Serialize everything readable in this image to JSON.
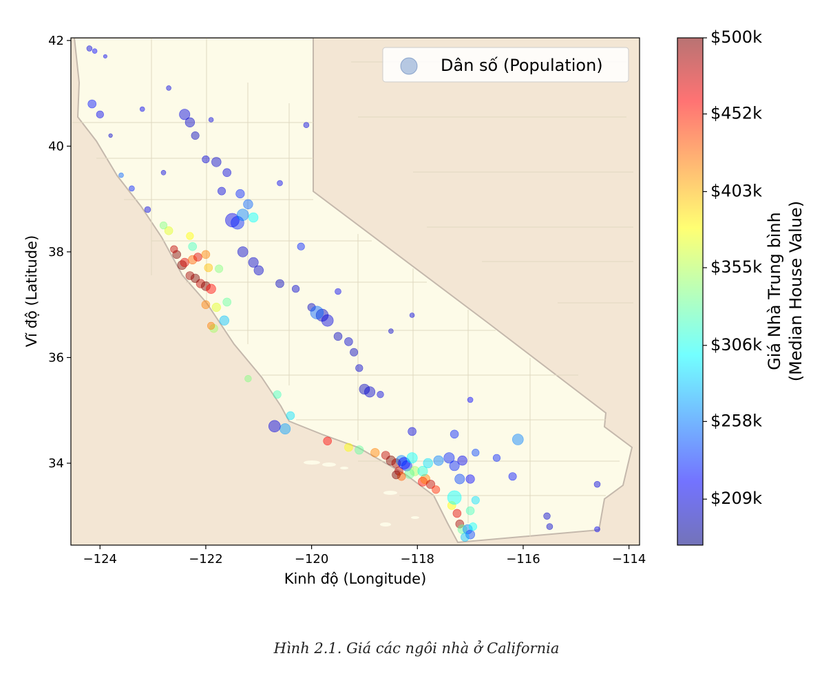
{
  "caption": "Hình 2.1. Giá các ngôi nhà ở California",
  "chart_data": {
    "type": "scatter",
    "title": "",
    "xlabel": "Kinh độ (Longitude)",
    "ylabel": "Vĩ độ (Latitude)",
    "xlim": [
      -124.55,
      -113.8
    ],
    "ylim": [
      32.45,
      42.05
    ],
    "xticks": [
      -124,
      -122,
      -120,
      -118,
      -116,
      -114
    ],
    "xtick_labels": [
      "−124",
      "−122",
      "−120",
      "−118",
      "−116",
      "−114"
    ],
    "yticks": [
      34,
      36,
      38,
      40,
      42
    ],
    "ytick_labels": [
      "34",
      "36",
      "38",
      "40",
      "42"
    ],
    "legend": {
      "label": "Dân số (Population)",
      "placement": "top-right"
    },
    "colorbar": {
      "label_line1": "Giá Nhà Trung bình",
      "label_line2": "(Median House Value)",
      "range": [
        180,
        500
      ],
      "ticks": [
        209,
        258,
        306,
        355,
        403,
        452,
        500
      ],
      "tick_labels": [
        "$209k",
        "$258k",
        "$306k",
        "$355k",
        "$403k",
        "$452k",
        "$500k"
      ],
      "colormap": [
        "#00007f",
        "#0000ff",
        "#007fff",
        "#00ffff",
        "#7fff7f",
        "#ffff00",
        "#ff7f00",
        "#ff0000",
        "#7f0000"
      ]
    },
    "colors": {
      "ocean": "#d5e0ef",
      "california": "#fdfbe8",
      "neighbor_states": "#f3e6d4",
      "state_border": "#c4b8ac",
      "county_lines": "#e0d8c0"
    },
    "point_alpha": 0.45,
    "series": [
      {
        "points": [
          [
            -124.1,
            41.8,
            220,
            300
          ],
          [
            -123.9,
            41.7,
            215,
            180
          ],
          [
            -124.15,
            40.8,
            225,
            900
          ],
          [
            -124.0,
            40.6,
            215,
            700
          ],
          [
            -123.8,
            40.2,
            205,
            200
          ],
          [
            -123.6,
            39.45,
            250,
            300
          ],
          [
            -123.4,
            39.2,
            230,
            400
          ],
          [
            -123.1,
            38.8,
            210,
            500
          ],
          [
            -122.4,
            40.6,
            210,
            1500
          ],
          [
            -122.3,
            40.45,
            205,
            1200
          ],
          [
            -122.2,
            40.2,
            200,
            800
          ],
          [
            -122.0,
            39.75,
            208,
            700
          ],
          [
            -121.8,
            39.7,
            205,
            1200
          ],
          [
            -121.6,
            39.5,
            210,
            900
          ],
          [
            -121.7,
            39.15,
            210,
            800
          ],
          [
            -121.35,
            39.1,
            230,
            1000
          ],
          [
            -121.2,
            38.9,
            250,
            1200
          ],
          [
            -121.5,
            38.6,
            215,
            2500
          ],
          [
            -121.4,
            38.55,
            230,
            2200
          ],
          [
            -121.3,
            38.7,
            260,
            1800
          ],
          [
            -121.1,
            38.65,
            300,
            1200
          ],
          [
            -121.3,
            38.0,
            205,
            1400
          ],
          [
            -121.1,
            37.8,
            205,
            1300
          ],
          [
            -121.0,
            37.65,
            205,
            1200
          ],
          [
            -120.6,
            37.4,
            200,
            900
          ],
          [
            -120.3,
            37.3,
            205,
            700
          ],
          [
            -120.0,
            36.95,
            200,
            800
          ],
          [
            -119.8,
            36.8,
            200,
            2000
          ],
          [
            -119.7,
            36.7,
            210,
            1800
          ],
          [
            -119.5,
            36.4,
            200,
            900
          ],
          [
            -119.3,
            36.3,
            205,
            900
          ],
          [
            -119.2,
            36.1,
            200,
            800
          ],
          [
            -119.1,
            35.8,
            205,
            700
          ],
          [
            -119.0,
            35.4,
            200,
            1400
          ],
          [
            -118.9,
            35.35,
            205,
            1500
          ],
          [
            -118.7,
            35.3,
            210,
            600
          ],
          [
            -118.1,
            34.6,
            210,
            900
          ],
          [
            -117.3,
            34.55,
            230,
            900
          ],
          [
            -116.9,
            34.2,
            240,
            700
          ],
          [
            -116.5,
            34.1,
            230,
            700
          ],
          [
            -116.2,
            33.75,
            225,
            800
          ],
          [
            -115.55,
            33.0,
            205,
            600
          ],
          [
            -115.5,
            32.8,
            205,
            500
          ],
          [
            -114.6,
            33.6,
            210,
            500
          ],
          [
            -114.6,
            32.75,
            215,
            400
          ],
          [
            -120.5,
            34.65,
            270,
            1500
          ],
          [
            -120.4,
            34.9,
            290,
            900
          ],
          [
            -120.65,
            35.3,
            320,
            800
          ],
          [
            -121.2,
            35.6,
            340,
            600
          ],
          [
            -121.85,
            36.55,
            350,
            900
          ],
          [
            -121.9,
            36.6,
            420,
            700
          ],
          [
            -121.65,
            36.7,
            280,
            1200
          ],
          [
            -121.8,
            36.95,
            370,
            1000
          ],
          [
            -122.0,
            37.0,
            420,
            900
          ],
          [
            -122.1,
            37.4,
            480,
            1000
          ],
          [
            -122.0,
            37.35,
            500,
            1100
          ],
          [
            -121.9,
            37.3,
            460,
            1200
          ],
          [
            -122.2,
            37.5,
            500,
            1000
          ],
          [
            -122.3,
            37.55,
            490,
            900
          ],
          [
            -122.45,
            37.75,
            500,
            1100
          ],
          [
            -122.4,
            37.8,
            470,
            1000
          ],
          [
            -122.25,
            37.85,
            430,
            1000
          ],
          [
            -122.15,
            37.9,
            470,
            900
          ],
          [
            -122.0,
            37.95,
            420,
            900
          ],
          [
            -122.55,
            37.95,
            500,
            900
          ],
          [
            -122.6,
            38.05,
            480,
            700
          ],
          [
            -122.7,
            38.4,
            370,
            900
          ],
          [
            -122.8,
            38.5,
            340,
            700
          ],
          [
            -122.3,
            38.3,
            380,
            700
          ],
          [
            -122.25,
            38.1,
            320,
            900
          ],
          [
            -121.95,
            37.7,
            400,
            900
          ],
          [
            -121.75,
            37.68,
            340,
            800
          ],
          [
            -119.7,
            34.42,
            460,
            900
          ],
          [
            -119.3,
            34.3,
            380,
            900
          ],
          [
            -119.1,
            34.25,
            330,
            1000
          ],
          [
            -118.8,
            34.2,
            420,
            1000
          ],
          [
            -118.6,
            34.15,
            480,
            900
          ],
          [
            -118.5,
            34.05,
            500,
            1200
          ],
          [
            -118.4,
            34.0,
            490,
            1100
          ],
          [
            -118.35,
            33.85,
            480,
            900
          ],
          [
            -118.3,
            34.05,
            260,
            1500
          ],
          [
            -118.25,
            34.0,
            220,
            1800
          ],
          [
            -118.2,
            33.95,
            230,
            1400
          ],
          [
            -118.1,
            34.1,
            300,
            1500
          ],
          [
            -118.05,
            33.85,
            350,
            1200
          ],
          [
            -118.15,
            33.8,
            330,
            1200
          ],
          [
            -118.3,
            33.75,
            430,
            900
          ],
          [
            -118.4,
            33.78,
            500,
            900
          ],
          [
            -117.9,
            33.65,
            460,
            1100
          ],
          [
            -117.85,
            33.7,
            420,
            1200
          ],
          [
            -117.75,
            33.6,
            480,
            1000
          ],
          [
            -117.65,
            33.5,
            450,
            800
          ],
          [
            -117.9,
            33.85,
            310,
            1300
          ],
          [
            -117.8,
            34.0,
            290,
            1200
          ],
          [
            -117.6,
            34.05,
            260,
            1300
          ],
          [
            -117.4,
            34.1,
            230,
            1500
          ],
          [
            -117.3,
            33.95,
            230,
            1300
          ],
          [
            -117.2,
            33.7,
            240,
            1300
          ],
          [
            -117.0,
            33.7,
            220,
            1000
          ],
          [
            -117.15,
            34.05,
            215,
            1200
          ],
          [
            -117.35,
            33.2,
            380,
            900
          ],
          [
            -117.25,
            33.05,
            470,
            900
          ],
          [
            -117.2,
            32.85,
            490,
            900
          ],
          [
            -117.15,
            32.75,
            330,
            1100
          ],
          [
            -117.05,
            32.75,
            260,
            1200
          ],
          [
            -117.0,
            32.65,
            240,
            1100
          ],
          [
            -117.1,
            32.6,
            280,
            900
          ],
          [
            -116.95,
            32.8,
            300,
            800
          ],
          [
            -117.0,
            33.1,
            320,
            900
          ],
          [
            -116.9,
            33.3,
            290,
            800
          ],
          [
            -117.3,
            33.35,
            300,
            2500
          ],
          [
            -116.1,
            34.45,
            260,
            1600
          ],
          [
            -120.7,
            34.7,
            210,
            1800
          ],
          [
            -119.9,
            36.85,
            250,
            2200
          ],
          [
            -124.2,
            41.85,
            210,
            400
          ],
          [
            -122.7,
            41.1,
            210,
            300
          ],
          [
            -120.1,
            40.4,
            210,
            400
          ],
          [
            -122.8,
            39.5,
            210,
            300
          ],
          [
            -121.6,
            37.05,
            330,
            900
          ],
          [
            -120.2,
            38.1,
            230,
            700
          ],
          [
            -119.5,
            37.25,
            215,
            500
          ],
          [
            -118.5,
            36.5,
            205,
            300
          ],
          [
            -118.1,
            36.8,
            210,
            300
          ],
          [
            -117.0,
            35.2,
            220,
            400
          ],
          [
            -120.6,
            39.3,
            215,
            400
          ],
          [
            -121.9,
            40.5,
            210,
            300
          ],
          [
            -123.2,
            40.7,
            215,
            300
          ]
        ]
      }
    ]
  }
}
